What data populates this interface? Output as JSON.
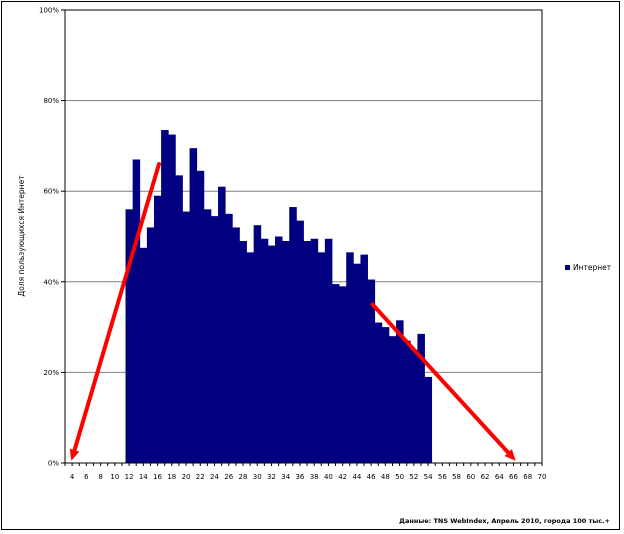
{
  "chart_data": {
    "type": "bar",
    "title": "",
    "xlabel": "",
    "ylabel": "Доля пользующихся Интернет",
    "xlim": [
      3,
      70
    ],
    "ylim": [
      0,
      100
    ],
    "y_ticks": [
      "0%",
      "20%",
      "40%",
      "60%",
      "80%",
      "100%"
    ],
    "x_ticks": [
      "4",
      "6",
      "8",
      "10",
      "12",
      "14",
      "16",
      "18",
      "20",
      "22",
      "24",
      "26",
      "28",
      "30",
      "32",
      "34",
      "36",
      "38",
      "40",
      "42",
      "44",
      "46",
      "48",
      "50",
      "52",
      "54",
      "56",
      "58",
      "60",
      "62",
      "64",
      "66",
      "68",
      "70"
    ],
    "grid": "horizontal",
    "legend_position": "right",
    "series": [
      {
        "name": "Интернет",
        "color": "#000080",
        "x": [
          12,
          13,
          14,
          15,
          16,
          17,
          18,
          19,
          20,
          21,
          22,
          23,
          24,
          25,
          26,
          27,
          28,
          29,
          30,
          31,
          32,
          33,
          34,
          35,
          36,
          37,
          38,
          39,
          40,
          41,
          42,
          43,
          44,
          45,
          46,
          47,
          48,
          49,
          50,
          51,
          52,
          53,
          54
        ],
        "values": [
          56,
          67,
          47.5,
          52,
          59,
          73.5,
          72.5,
          63.5,
          55.5,
          69.5,
          64.5,
          56,
          54.5,
          61,
          55,
          52,
          49,
          46.5,
          52.5,
          49.5,
          48,
          50,
          49,
          56.5,
          53.5,
          49,
          49.5,
          46.5,
          49.5,
          39.5,
          39,
          46.5,
          44,
          46,
          40.5,
          31,
          30,
          28,
          31.5,
          27,
          25,
          28.5,
          19
        ]
      }
    ],
    "annotations": [
      {
        "type": "arrow",
        "color": "#ff0000",
        "from": [
          16.2,
          66
        ],
        "to": [
          3.9,
          0.5
        ]
      },
      {
        "type": "arrow",
        "color": "#ff0000",
        "from": [
          46.2,
          35
        ],
        "to": [
          66.3,
          0.5
        ]
      }
    ]
  },
  "source_note": "Данные: TNS WebIndex, Апрель 2010, города 100 тыс.+"
}
